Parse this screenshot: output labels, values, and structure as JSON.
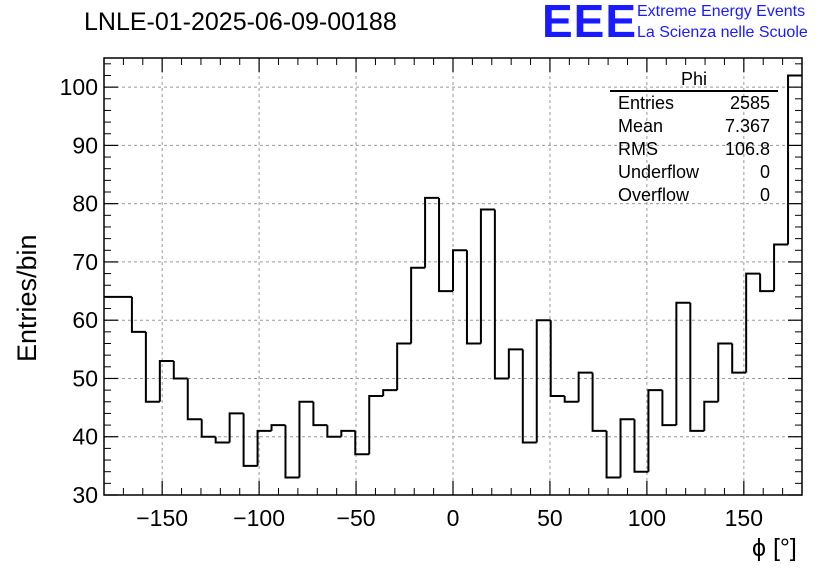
{
  "header": {
    "title": "LNLE-01-2025-06-09-00188",
    "logo_text": "EEE",
    "logo_line1": "Extreme Energy Events",
    "logo_line2": "La Scienza nelle Scuole"
  },
  "stats_box": {
    "name": "Phi",
    "rows": [
      {
        "label": "Entries",
        "value": "2585"
      },
      {
        "label": "Mean",
        "value": "7.367"
      },
      {
        "label": "RMS",
        "value": "106.8"
      },
      {
        "label": "Underflow",
        "value": "0"
      },
      {
        "label": "Overflow",
        "value": "0"
      }
    ]
  },
  "chart_data": {
    "type": "histogram",
    "title": "LNLE-01-2025-06-09-00188",
    "xlabel": "ϕ [°]",
    "ylabel": "Entries/bin",
    "xlim": [
      -180,
      180
    ],
    "ylim": [
      30,
      105
    ],
    "grid": true,
    "bin_width": 7.2,
    "bin_edges_start": -180,
    "values": [
      64,
      64,
      58,
      46,
      53,
      50,
      43,
      40,
      39,
      44,
      35,
      41,
      42,
      33,
      46,
      42,
      40,
      41,
      37,
      47,
      48,
      56,
      69,
      81,
      65,
      72,
      56,
      79,
      50,
      55,
      39,
      60,
      47,
      46,
      51,
      41,
      33,
      43,
      34,
      48,
      42,
      63,
      41,
      46,
      56,
      51,
      68,
      65,
      73,
      102
    ],
    "xticks": [
      -150,
      -100,
      -50,
      0,
      50,
      100,
      150
    ],
    "xtick_labels": [
      "−150",
      "−100",
      "−50",
      "0",
      "50",
      "100",
      "150"
    ],
    "yticks": [
      30,
      40,
      50,
      60,
      70,
      80,
      90,
      100
    ],
    "ytick_labels": [
      "30",
      "40",
      "50",
      "60",
      "70",
      "80",
      "90",
      "100"
    ]
  }
}
